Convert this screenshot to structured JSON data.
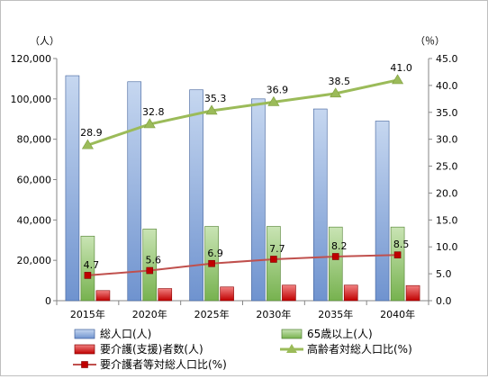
{
  "chart_data": {
    "type": "bar",
    "categories": [
      "2015年",
      "2020年",
      "2025年",
      "2030年",
      "2035年",
      "2040年"
    ],
    "y_left": {
      "unit_label": "（人）",
      "ylim": [
        0,
        120000
      ],
      "ticks": [
        "0",
        "20,000",
        "40,000",
        "60,000",
        "80,000",
        "100,000",
        "120,000"
      ]
    },
    "y_right": {
      "unit_label": "（％）",
      "ylim": [
        0,
        45
      ],
      "ticks": [
        "0.0",
        "5.0",
        "10.0",
        "15.0",
        "20.0",
        "25.0",
        "30.0",
        "35.0",
        "40.0",
        "45.0"
      ]
    },
    "grid": false,
    "legend_position": "bottom",
    "series": [
      {
        "name": "総人口(人)",
        "kind": "bar",
        "axis": "left",
        "color": "#9bb7e0",
        "values": [
          111500,
          108500,
          104500,
          100000,
          95000,
          89000
        ]
      },
      {
        "name": "65歳以上(人)",
        "kind": "bar",
        "axis": "left",
        "color": "#9dcd7a",
        "values": [
          32000,
          35500,
          36800,
          36800,
          36500,
          36500
        ]
      },
      {
        "name": "要介護(支援)者数(人)",
        "kind": "bar",
        "axis": "left",
        "color": "#e5202a",
        "values": [
          5000,
          6000,
          6800,
          7700,
          7700,
          7500
        ]
      },
      {
        "name": "高齢者対総人口比(%)",
        "kind": "line",
        "axis": "right",
        "color": "#9bbb59",
        "marker": "triangle",
        "values": [
          28.9,
          32.8,
          35.3,
          36.9,
          38.5,
          41.0
        ],
        "labels": [
          "28.9",
          "32.8",
          "35.3",
          "36.9",
          "38.5",
          "41.0"
        ]
      },
      {
        "name": "要介護者等対総人口比(%)",
        "kind": "line",
        "axis": "right",
        "color": "#c0504d",
        "marker": "square",
        "values": [
          4.7,
          5.6,
          6.9,
          7.7,
          8.2,
          8.5
        ],
        "labels": [
          "4.7",
          "5.6",
          "6.9",
          "7.7",
          "8.2",
          "8.5"
        ]
      }
    ]
  }
}
